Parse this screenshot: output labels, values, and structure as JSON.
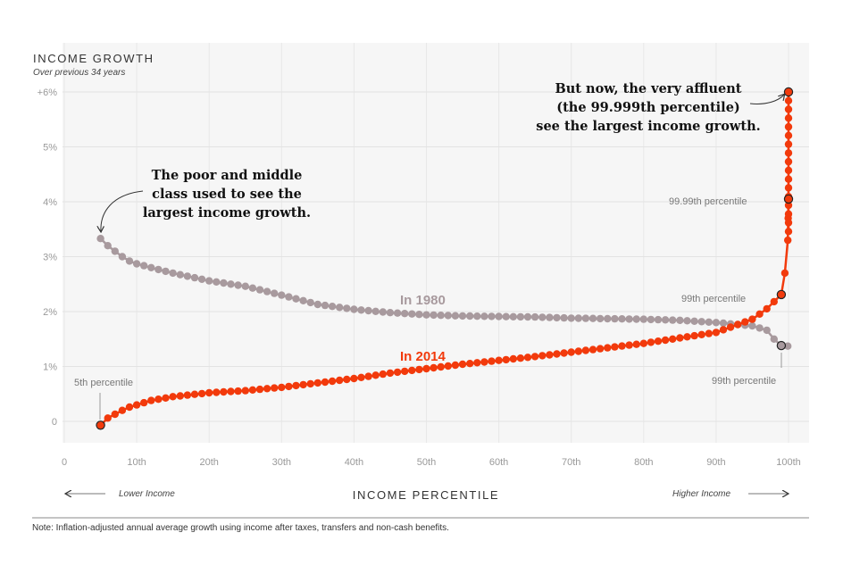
{
  "chart_data": {
    "type": "scatter",
    "title": "INCOME GROWTH",
    "subtitle": "Over previous 34 years",
    "xlabel": "INCOME PERCENTILE",
    "x_direction_low": "Lower Income",
    "x_direction_high": "Higher Income",
    "xlim": [
      0,
      100
    ],
    "ylim": [
      -0.4,
      6.2
    ],
    "x_ticks": [
      {
        "v": 0,
        "label": "0"
      },
      {
        "v": 10,
        "label": "10th"
      },
      {
        "v": 20,
        "label": "20th"
      },
      {
        "v": 30,
        "label": "30th"
      },
      {
        "v": 40,
        "label": "40th"
      },
      {
        "v": 50,
        "label": "50th"
      },
      {
        "v": 60,
        "label": "60th"
      },
      {
        "v": 70,
        "label": "70th"
      },
      {
        "v": 80,
        "label": "80th"
      },
      {
        "v": 90,
        "label": "90th"
      },
      {
        "v": 100,
        "label": "100th"
      }
    ],
    "y_ticks": [
      {
        "v": 0,
        "label": "0"
      },
      {
        "v": 1,
        "label": "1%"
      },
      {
        "v": 2,
        "label": "2%"
      },
      {
        "v": 3,
        "label": "3%"
      },
      {
        "v": 4,
        "label": "4%"
      },
      {
        "v": 5,
        "label": "5%"
      },
      {
        "v": 6,
        "label": "+6%"
      }
    ],
    "grid": true,
    "series": [
      {
        "name": "In 1980",
        "color": "#a89a9e",
        "x": [
          5,
          6,
          7,
          8,
          9,
          10,
          12,
          15,
          20,
          25,
          30,
          35,
          40,
          45,
          50,
          55,
          60,
          65,
          70,
          75,
          80,
          85,
          90,
          95,
          97,
          98,
          99,
          99.9
        ],
        "y": [
          3.33,
          3.2,
          3.1,
          3.0,
          2.92,
          2.87,
          2.8,
          2.7,
          2.56,
          2.46,
          2.3,
          2.13,
          2.04,
          1.98,
          1.94,
          1.92,
          1.91,
          1.9,
          1.88,
          1.87,
          1.86,
          1.84,
          1.8,
          1.74,
          1.66,
          1.5,
          1.38,
          1.37
        ]
      },
      {
        "name": "In 2014",
        "color": "#f23a0c",
        "x": [
          5,
          6,
          7,
          8,
          9,
          10,
          12,
          15,
          20,
          25,
          30,
          35,
          40,
          45,
          50,
          55,
          60,
          65,
          70,
          75,
          80,
          85,
          90,
          95,
          97,
          98,
          99,
          99.5,
          99.9,
          99.95,
          99.99,
          99.999
        ],
        "y": [
          -0.07,
          0.06,
          0.13,
          0.2,
          0.26,
          0.3,
          0.38,
          0.45,
          0.52,
          0.56,
          0.62,
          0.7,
          0.78,
          0.88,
          0.96,
          1.04,
          1.11,
          1.18,
          1.26,
          1.34,
          1.42,
          1.52,
          1.62,
          1.86,
          2.05,
          2.18,
          2.31,
          2.7,
          3.3,
          3.7,
          4.05,
          6.0
        ]
      }
    ],
    "annotations": [
      {
        "text": "5th percentile"
      },
      {
        "text": "99th percentile"
      },
      {
        "text": "99th percentile"
      },
      {
        "text": "99.99th percentile"
      },
      {
        "lines": [
          "The poor and middle",
          "class used to see the",
          "largest income growth."
        ]
      },
      {
        "lines": [
          "But now, the very affluent",
          "(the 99.999th percentile)",
          "see the largest income growth."
        ]
      }
    ]
  },
  "note": "Note: Inflation-adjusted annual average growth using income after taxes, transfers and non-cash benefits."
}
